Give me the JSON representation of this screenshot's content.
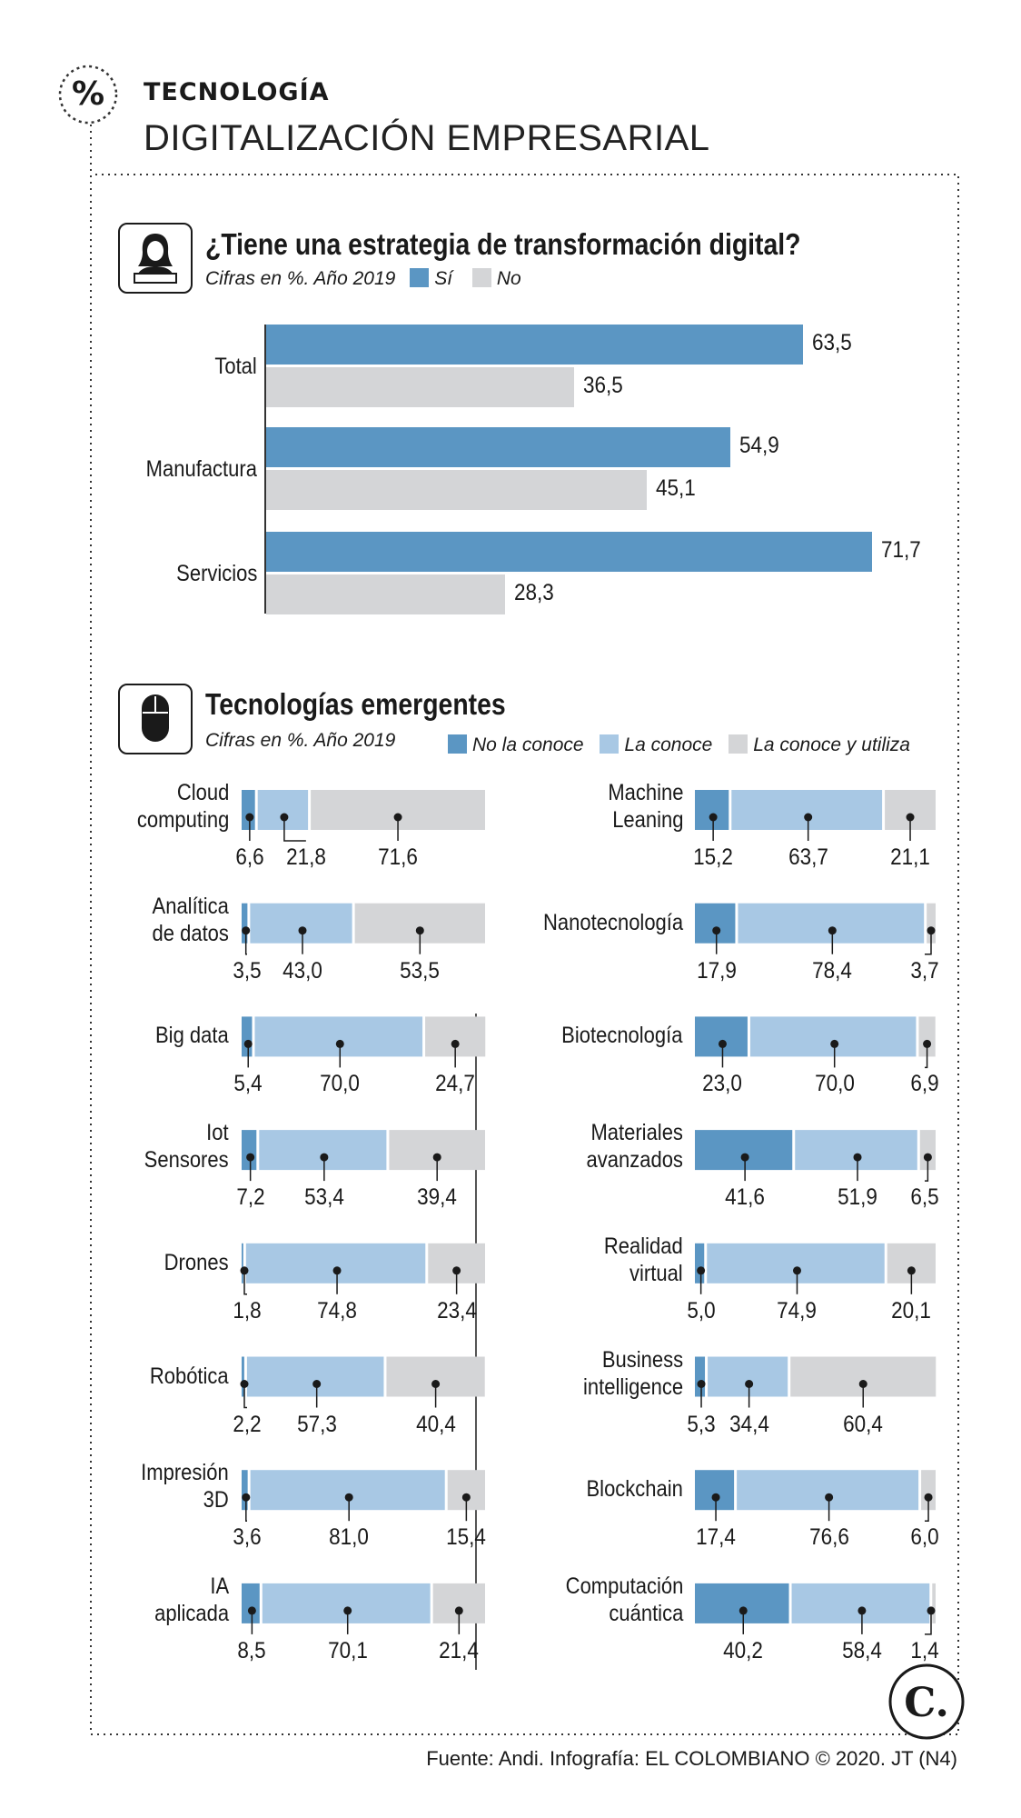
{
  "header": {
    "section": "TECNOLOGÍA",
    "title": "DIGITALIZACIÓN EMPRESARIAL",
    "section_icon": "percent-icon"
  },
  "strategy": {
    "question": "¿Tiene una estrategia de transformación digital?",
    "subtitle": "Cifras en %. Año 2019",
    "icon": "person-laptop-icon",
    "legend": [
      {
        "label": "Sí",
        "color": "#5b96c3"
      },
      {
        "label": "No",
        "color": "#d4d5d7"
      }
    ]
  },
  "emerging": {
    "title": "Tecnologías emergentes",
    "subtitle": "Cifras en %. Año 2019",
    "icon": "computer-mouse-icon",
    "legend": [
      {
        "label": "No la conoce",
        "color": "#5b96c3"
      },
      {
        "label": "La conoce",
        "color": "#a8c8e4"
      },
      {
        "label": "La conoce y utiliza",
        "color": "#d4d5d7"
      }
    ]
  },
  "chart_data": [
    {
      "type": "bar",
      "orientation": "horizontal",
      "title": "¿Tiene una estrategia de transformación digital?",
      "categories": [
        "Total",
        "Manufactura",
        "Servicios"
      ],
      "series": [
        {
          "name": "Sí",
          "values": [
            "63,5",
            "54,9",
            "71,7"
          ],
          "numeric": [
            63.5,
            54.9,
            71.7
          ],
          "color": "#5b96c3"
        },
        {
          "name": "No",
          "values": [
            "36,5",
            "45,1",
            "28,3"
          ],
          "numeric": [
            36.5,
            45.1,
            28.3
          ],
          "color": "#d4d5d7"
        }
      ],
      "xlim": [
        0,
        100
      ]
    },
    {
      "type": "bar",
      "orientation": "horizontal",
      "stacked": true,
      "title": "Tecnologías emergentes",
      "series_names": [
        "No la conoce",
        "La conoce",
        "La conoce y utiliza"
      ],
      "left": [
        {
          "label": "Cloud\ncomputing",
          "values": [
            "6,6",
            "21,8",
            "71,6"
          ],
          "numeric": [
            6.6,
            21.8,
            71.6
          ]
        },
        {
          "label": "Analítica\nde datos",
          "values": [
            "3,5",
            "43,0",
            "53,5"
          ],
          "numeric": [
            3.5,
            43.0,
            53.5
          ]
        },
        {
          "label": "Big data",
          "values": [
            "5,4",
            "70,0",
            "24,7"
          ],
          "numeric": [
            5.4,
            70.0,
            24.7
          ]
        },
        {
          "label": "Iot\nSensores",
          "values": [
            "7,2",
            "53,4",
            "39,4"
          ],
          "numeric": [
            7.2,
            53.4,
            39.4
          ]
        },
        {
          "label": "Drones",
          "values": [
            "1,8",
            "74,8",
            "23,4"
          ],
          "numeric": [
            1.8,
            74.8,
            23.4
          ]
        },
        {
          "label": "Robótica",
          "values": [
            "2,2",
            "57,3",
            "40,4"
          ],
          "numeric": [
            2.2,
            57.3,
            40.4
          ]
        },
        {
          "label": "Impresión\n3D",
          "values": [
            "3,6",
            "81,0",
            "15,4"
          ],
          "numeric": [
            3.6,
            81.0,
            15.4
          ]
        },
        {
          "label": "IA\naplicada",
          "values": [
            "8,5",
            "70,1",
            "21,4"
          ],
          "numeric": [
            8.5,
            70.1,
            21.4
          ]
        }
      ],
      "right": [
        {
          "label": "Machine\nLeaning",
          "values": [
            "15,2",
            "63,7",
            "21,1"
          ],
          "numeric": [
            15.2,
            63.7,
            21.1
          ]
        },
        {
          "label": "Nanotecnología",
          "values": [
            "17,9",
            "78,4",
            "3,7"
          ],
          "numeric": [
            17.9,
            78.4,
            3.7
          ]
        },
        {
          "label": "Biotecnología",
          "values": [
            "23,0",
            "70,0",
            "6,9"
          ],
          "numeric": [
            23.0,
            70.0,
            6.9
          ]
        },
        {
          "label": "Materiales\navanzados",
          "values": [
            "41,6",
            "51,9",
            "6,5"
          ],
          "numeric": [
            41.6,
            51.9,
            6.5
          ]
        },
        {
          "label": "Realidad\nvirtual",
          "values": [
            "5,0",
            "74,9",
            "20,1"
          ],
          "numeric": [
            5.0,
            74.9,
            20.1
          ]
        },
        {
          "label": "Business\nintelligence",
          "values": [
            "5,3",
            "34,4",
            "60,4"
          ],
          "numeric": [
            5.3,
            34.4,
            60.4
          ]
        },
        {
          "label": "Blockchain",
          "values": [
            "17,4",
            "76,6",
            "6,0"
          ],
          "numeric": [
            17.4,
            76.6,
            6.0
          ]
        },
        {
          "label": "Computación\ncuántica",
          "values": [
            "40,2",
            "58,4",
            "1,4"
          ],
          "numeric": [
            40.2,
            58.4,
            1.4
          ]
        }
      ]
    }
  ],
  "footer": {
    "source": "Fuente: Andi. Infografía: EL COLOMBIANO © 2020. JT (N4)",
    "logo_letter": "C."
  }
}
